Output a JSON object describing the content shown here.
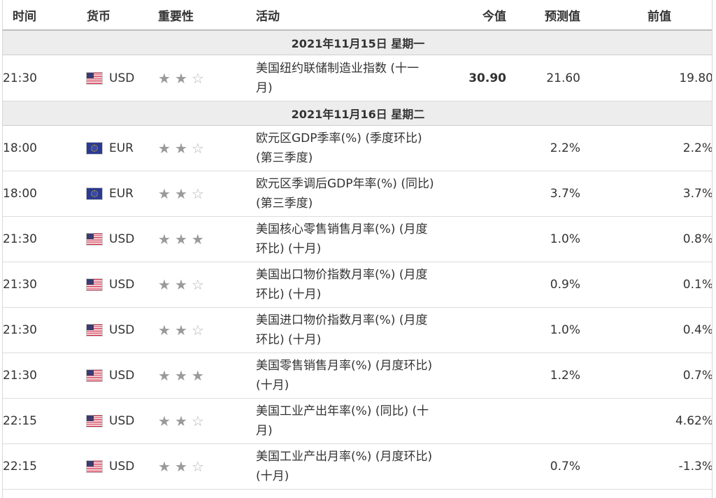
{
  "header": {
    "time": "时间",
    "currency": "货币",
    "importance": "重要性",
    "event": "活动",
    "actual": "今值",
    "forecast": "预测值",
    "previous": "前值"
  },
  "star_icons": {
    "filled": "★",
    "empty": "☆"
  },
  "dates": [
    {
      "label": "2021年11月15日  星期一",
      "events": [
        {
          "time": "21:30",
          "flag": "us-flag-icon",
          "currency": "USD",
          "stars": 2,
          "event_line1": "美国纽约联储制造业指数 (十一",
          "event_line2": "月)",
          "actual": "30.90",
          "forecast": "21.60",
          "previous": "19.80"
        }
      ]
    },
    {
      "label": "2021年11月16日  星期二",
      "events": [
        {
          "time": "18:00",
          "flag": "eu-flag-icon",
          "currency": "EUR",
          "stars": 2,
          "event_line1": "欧元区GDP季率(%) (季度环比)",
          "event_line2": "(第三季度)",
          "actual": "",
          "forecast": "2.2%",
          "previous": "2.2%"
        },
        {
          "time": "18:00",
          "flag": "eu-flag-icon",
          "currency": "EUR",
          "stars": 2,
          "event_line1": "欧元区季调后GDP年率(%) (同比)",
          "event_line2": "(第三季度)",
          "actual": "",
          "forecast": "3.7%",
          "previous": "3.7%"
        },
        {
          "time": "21:30",
          "flag": "us-flag-icon",
          "currency": "USD",
          "stars": 3,
          "event_line1": "美国核心零售销售月率(%) (月度",
          "event_line2": "环比) (十月)",
          "actual": "",
          "forecast": "1.0%",
          "previous": "0.8%"
        },
        {
          "time": "21:30",
          "flag": "us-flag-icon",
          "currency": "USD",
          "stars": 2,
          "event_line1": "美国出口物价指数月率(%) (月度",
          "event_line2": "环比) (十月)",
          "actual": "",
          "forecast": "0.9%",
          "previous": "0.1%"
        },
        {
          "time": "21:30",
          "flag": "us-flag-icon",
          "currency": "USD",
          "stars": 2,
          "event_line1": "美国进口物价指数月率(%) (月度",
          "event_line2": "环比) (十月)",
          "actual": "",
          "forecast": "1.0%",
          "previous": "0.4%"
        },
        {
          "time": "21:30",
          "flag": "us-flag-icon",
          "currency": "USD",
          "stars": 3,
          "event_line1": "美国零售销售月率(%) (月度环比)",
          "event_line2": "(十月)",
          "actual": "",
          "forecast": "1.2%",
          "previous": "0.7%"
        },
        {
          "time": "22:15",
          "flag": "us-flag-icon",
          "currency": "USD",
          "stars": 2,
          "event_line1": "美国工业产出年率(%) (同比) (十",
          "event_line2": "月)",
          "actual": "",
          "forecast": "",
          "previous": "4.62%"
        },
        {
          "time": "22:15",
          "flag": "us-flag-icon",
          "currency": "USD",
          "stars": 2,
          "event_line1": "美国工业产出月率(%) (月度环比)",
          "event_line2": "(十月)",
          "actual": "",
          "forecast": "0.7%",
          "previous": "-1.3%"
        }
      ]
    }
  ]
}
